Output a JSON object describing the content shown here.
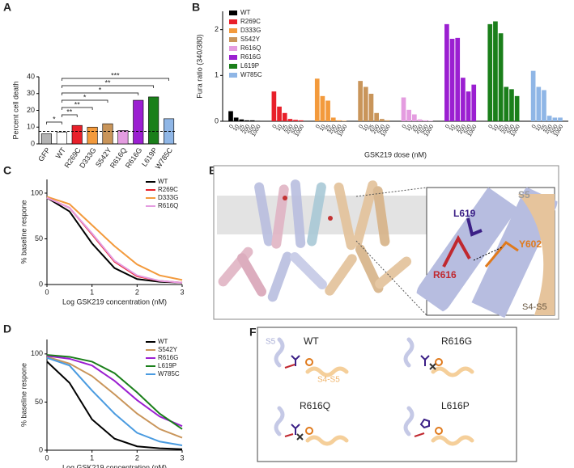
{
  "panel_labels": [
    "A",
    "B",
    "C",
    "D",
    "E",
    "F"
  ],
  "chart_data": [
    {
      "type": "bar",
      "ylabel": "Percent cell death",
      "categories": [
        "GFP",
        "WT",
        "R269C",
        "D333G",
        "S542Y",
        "R616Q",
        "R616G",
        "L619P",
        "W785C"
      ],
      "values": [
        6,
        7,
        11,
        10,
        12,
        8,
        26,
        28,
        15
      ],
      "colors": [
        "#b3b3b3",
        "#ffffff",
        "#e8202a",
        "#f39a3c",
        "#c9955a",
        "#e49ce0",
        "#9b1fd1",
        "#1a7f1a",
        "#8fb6e6"
      ],
      "ylim": [
        0,
        40
      ],
      "yticks": [
        0,
        10,
        20,
        30,
        40
      ],
      "hline": 7.5,
      "annotations": [
        "*",
        "**",
        "**",
        "*",
        "*",
        "**",
        "***"
      ]
    },
    {
      "type": "grouped_bar",
      "ylabel": "Fura ratio (340/380)",
      "xlabel": "GSK219 dose (nM)",
      "categories": [
        "0",
        "10",
        "25",
        "200",
        "500",
        "1000"
      ],
      "ylim": [
        0,
        2.4
      ],
      "yticks": [
        0,
        1,
        2
      ],
      "series": [
        {
          "name": "WT",
          "color": "#000000",
          "values": [
            0.22,
            0.08,
            0.04,
            0.02,
            0.02,
            0.01
          ]
        },
        {
          "name": "R269C",
          "color": "#e8202a",
          "values": [
            0.65,
            0.32,
            0.18,
            0.05,
            0.03,
            0.02
          ]
        },
        {
          "name": "D333G",
          "color": "#f39a3c",
          "values": [
            0.93,
            0.55,
            0.45,
            0.08,
            0.02,
            0.01
          ]
        },
        {
          "name": "S542Y",
          "color": "#c9955a",
          "values": [
            0.88,
            0.75,
            0.6,
            0.18,
            0.05,
            0.02
          ]
        },
        {
          "name": "R616Q",
          "color": "#e49ce0",
          "values": [
            0.52,
            0.25,
            0.15,
            0.04,
            0.02,
            0.01
          ]
        },
        {
          "name": "R616G",
          "color": "#9b1fd1",
          "values": [
            2.12,
            1.8,
            1.82,
            0.95,
            0.65,
            0.8
          ]
        },
        {
          "name": "L619P",
          "color": "#1a7f1a",
          "values": [
            2.12,
            2.18,
            1.92,
            0.75,
            0.7,
            0.55
          ]
        },
        {
          "name": "W785C",
          "color": "#8fb6e6",
          "values": [
            1.1,
            0.75,
            0.68,
            0.12,
            0.08,
            0.08
          ]
        }
      ]
    },
    {
      "type": "line",
      "ylabel": "% baseline respone",
      "xlabel": "Log GSK219 concentration (nM)",
      "x": [
        0,
        0.5,
        1,
        1.5,
        2,
        2.5,
        3
      ],
      "xlim": [
        0,
        3
      ],
      "xticks": [
        0,
        1,
        2,
        3
      ],
      "ylim": [
        0,
        115
      ],
      "yticks": [
        0,
        50,
        100
      ],
      "series": [
        {
          "name": "WT",
          "color": "#000000",
          "values": [
            95,
            80,
            45,
            18,
            6,
            3,
            2
          ]
        },
        {
          "name": "R269C",
          "color": "#e8202a",
          "values": [
            95,
            84,
            55,
            25,
            9,
            4,
            2
          ]
        },
        {
          "name": "D333G",
          "color": "#f39a3c",
          "values": [
            96,
            88,
            65,
            42,
            22,
            10,
            5
          ]
        },
        {
          "name": "R616Q",
          "color": "#e49ce0",
          "values": [
            95,
            84,
            56,
            26,
            10,
            4,
            2
          ]
        }
      ]
    },
    {
      "type": "line",
      "ylabel": "% baseline respone",
      "xlabel": "Log GSK219 concentration (nM)",
      "x": [
        0,
        0.5,
        1,
        1.5,
        2,
        2.5,
        3
      ],
      "xlim": [
        0,
        3
      ],
      "xticks": [
        0,
        1,
        2,
        3
      ],
      "ylim": [
        0,
        115
      ],
      "yticks": [
        0,
        50,
        100
      ],
      "series": [
        {
          "name": "WT",
          "color": "#000000",
          "values": [
            92,
            70,
            32,
            12,
            4,
            2,
            1
          ]
        },
        {
          "name": "S542Y",
          "color": "#c9955a",
          "values": [
            97,
            90,
            77,
            58,
            38,
            22,
            13
          ]
        },
        {
          "name": "R616G",
          "color": "#9b1fd1",
          "values": [
            98,
            95,
            88,
            72,
            52,
            35,
            25
          ]
        },
        {
          "name": "L619P",
          "color": "#1a7f1a",
          "values": [
            99,
            97,
            92,
            80,
            60,
            38,
            22
          ]
        },
        {
          "name": "W785C",
          "color": "#4a9be0",
          "values": [
            96,
            88,
            62,
            38,
            18,
            9,
            5
          ]
        }
      ]
    }
  ],
  "structure": {
    "labels": [
      "S5",
      "L619",
      "Y602",
      "R616",
      "S4-S5"
    ]
  },
  "schematic": {
    "labels": [
      "S5",
      "WT",
      "S4-S5",
      "R616G",
      "R616Q",
      "L616P"
    ]
  }
}
